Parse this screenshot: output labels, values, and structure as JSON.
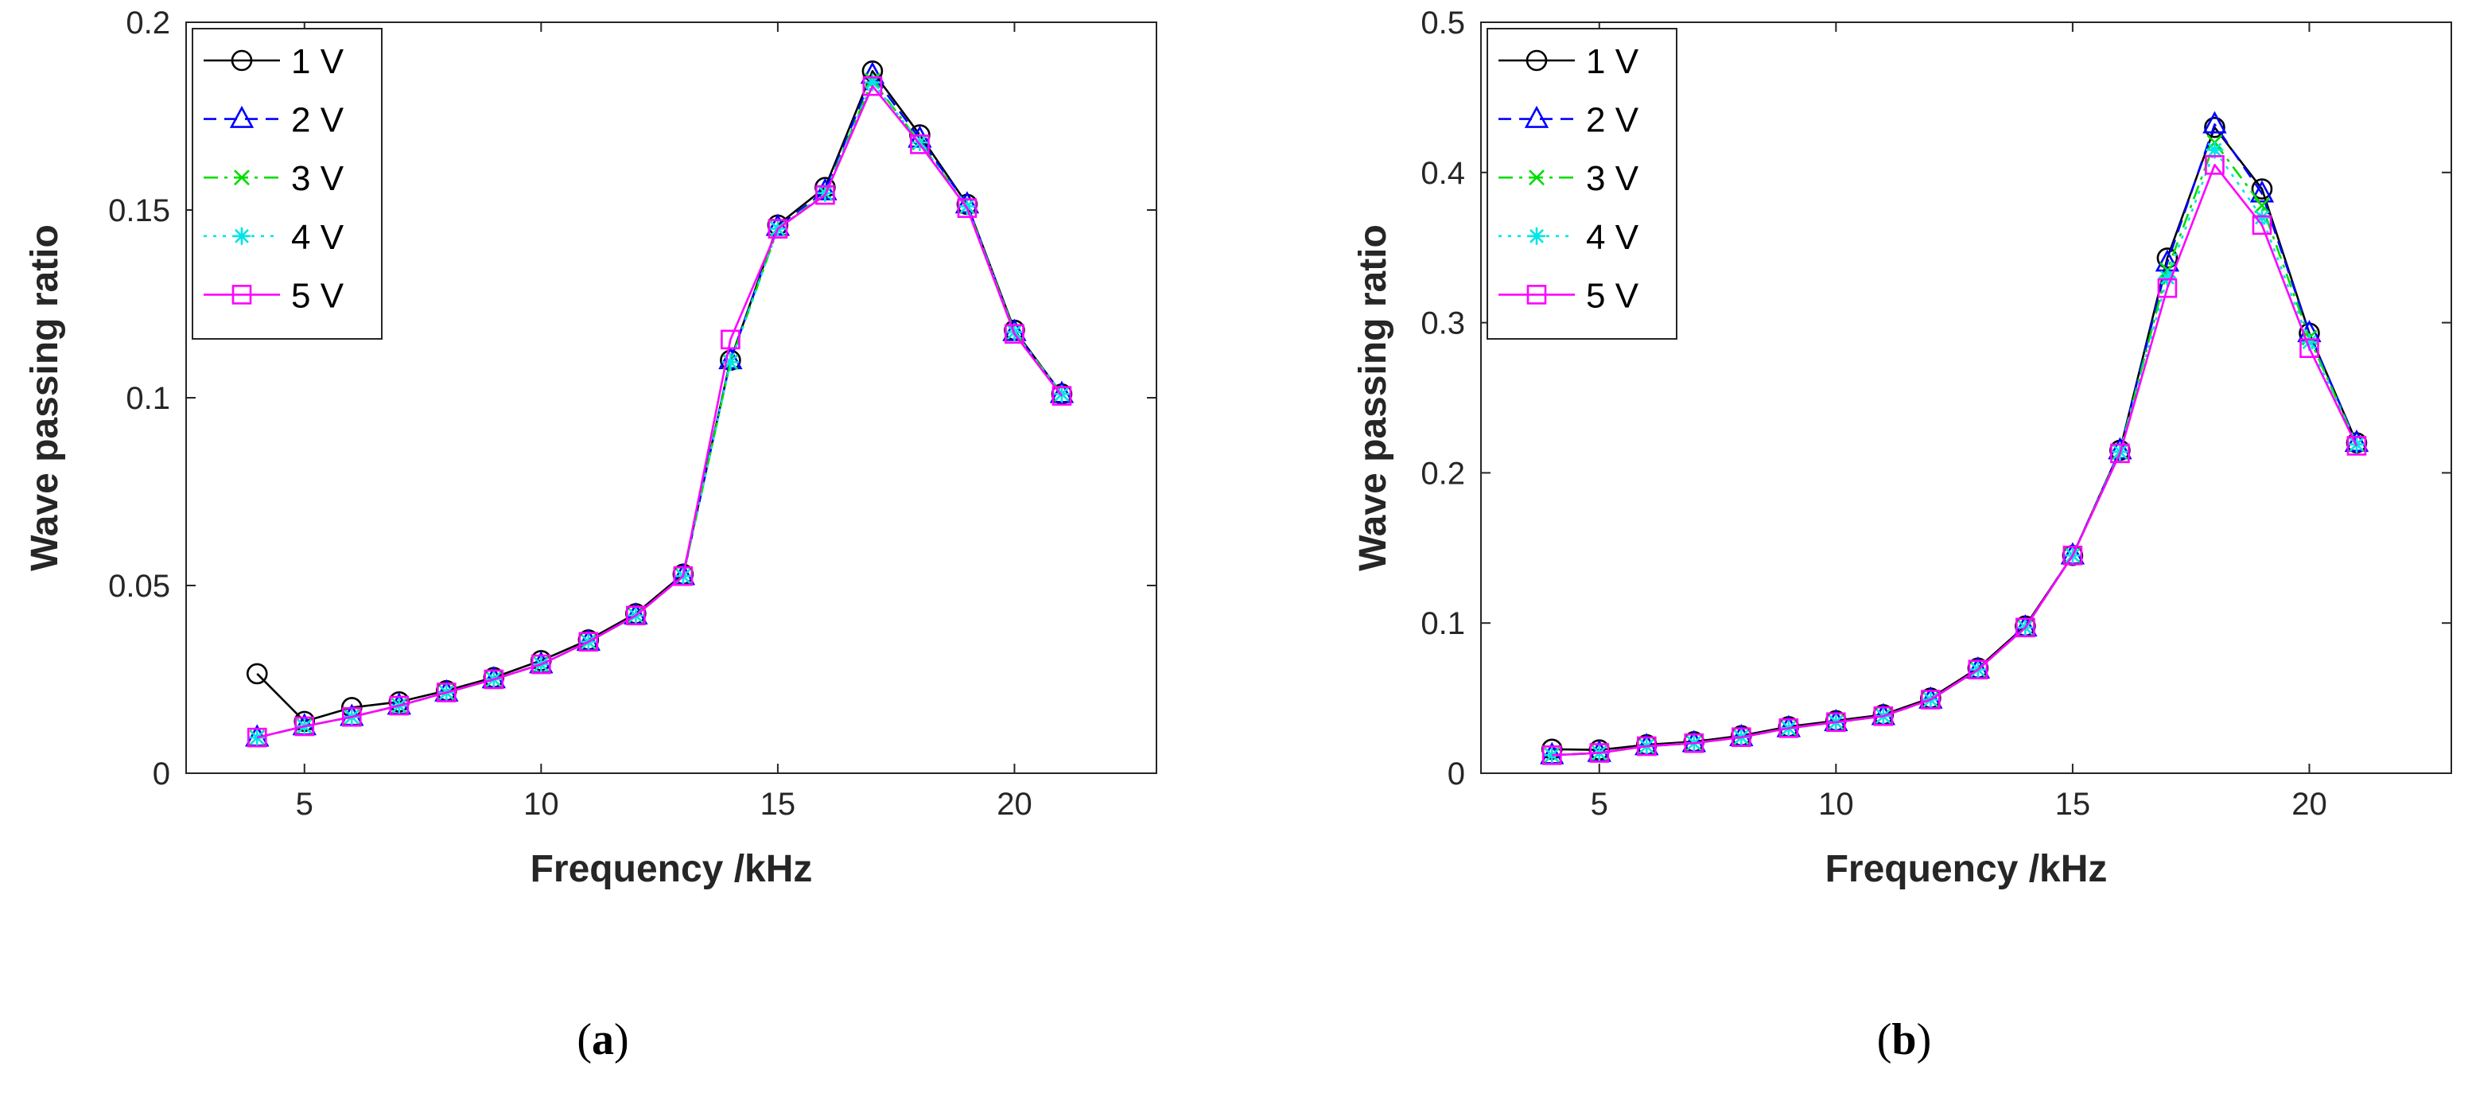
{
  "chart_data": [
    {
      "type": "line",
      "caption_open": "(",
      "caption_letter": "a",
      "caption_close": ")",
      "xlabel": "Frequency /kHz",
      "ylabel": "Wave passing ratio",
      "xlim": [
        2.5,
        23
      ],
      "ylim": [
        0,
        0.2
      ],
      "xticks": [
        5,
        10,
        15,
        20
      ],
      "yticks": [
        0,
        0.05,
        0.1,
        0.15,
        0.2
      ],
      "ytick_labels": [
        "0",
        "0.05",
        "0.1",
        "0.15",
        "0.2"
      ],
      "legend_position": "top-left",
      "x": [
        4,
        5,
        6,
        7,
        8,
        9,
        10,
        11,
        12,
        13,
        14,
        15,
        16,
        17,
        18,
        19,
        20,
        21
      ],
      "series": [
        {
          "name": "1 V",
          "color": "#000000",
          "marker": "circle",
          "dash": "solid",
          "values": [
            0.0265,
            0.0138,
            0.0175,
            0.019,
            0.022,
            0.0255,
            0.03,
            0.0355,
            0.0425,
            0.053,
            0.11,
            0.146,
            0.156,
            0.187,
            0.17,
            0.1515,
            0.118,
            0.101
          ]
        },
        {
          "name": "2 V",
          "color": "#0000ff",
          "marker": "triangle",
          "dash": "dashed",
          "values": [
            0.0095,
            0.0125,
            0.015,
            0.018,
            0.0215,
            0.025,
            0.029,
            0.035,
            0.042,
            0.0525,
            0.11,
            0.1455,
            0.155,
            0.186,
            0.169,
            0.1515,
            0.1175,
            0.101
          ]
        },
        {
          "name": "3 V",
          "color": "#00dd00",
          "marker": "cross",
          "dash": "dashdot",
          "values": [
            0.0095,
            0.0125,
            0.015,
            0.018,
            0.0215,
            0.025,
            0.029,
            0.035,
            0.042,
            0.0525,
            0.1095,
            0.145,
            0.1545,
            0.1845,
            0.168,
            0.151,
            0.1175,
            0.101
          ]
        },
        {
          "name": "4 V",
          "color": "#00e5e5",
          "marker": "star",
          "dash": "dotted",
          "values": [
            0.0095,
            0.0125,
            0.015,
            0.018,
            0.0215,
            0.025,
            0.029,
            0.035,
            0.042,
            0.0525,
            0.1095,
            0.145,
            0.1545,
            0.184,
            0.168,
            0.151,
            0.1175,
            0.101
          ]
        },
        {
          "name": "5 V",
          "color": "#ff00ff",
          "marker": "square",
          "dash": "solid",
          "values": [
            0.0095,
            0.0125,
            0.015,
            0.018,
            0.0215,
            0.025,
            0.029,
            0.035,
            0.042,
            0.0525,
            0.1155,
            0.145,
            0.154,
            0.183,
            0.1675,
            0.1505,
            0.117,
            0.1005
          ]
        }
      ]
    },
    {
      "type": "line",
      "caption_open": "(",
      "caption_letter": "b",
      "caption_close": ")",
      "xlabel": "Frequency /kHz",
      "ylabel": "Wave passing ratio",
      "xlim": [
        2.5,
        23
      ],
      "ylim": [
        0,
        0.5
      ],
      "xticks": [
        5,
        10,
        15,
        20
      ],
      "yticks": [
        0,
        0.1,
        0.2,
        0.3,
        0.4,
        0.5
      ],
      "ytick_labels": [
        "0",
        "0.1",
        "0.2",
        "0.3",
        "0.4",
        "0.5"
      ],
      "legend_position": "top-left",
      "x": [
        4,
        5,
        6,
        7,
        8,
        9,
        10,
        11,
        12,
        13,
        14,
        15,
        16,
        17,
        18,
        19,
        20,
        21
      ],
      "series": [
        {
          "name": "1 V",
          "color": "#000000",
          "marker": "circle",
          "dash": "solid",
          "values": [
            0.016,
            0.0155,
            0.019,
            0.021,
            0.025,
            0.031,
            0.035,
            0.039,
            0.05,
            0.07,
            0.098,
            0.145,
            0.215,
            0.343,
            0.43,
            0.389,
            0.293,
            0.22
          ]
        },
        {
          "name": "2 V",
          "color": "#0000ff",
          "marker": "triangle",
          "dash": "dashed",
          "values": [
            0.012,
            0.0135,
            0.018,
            0.02,
            0.024,
            0.03,
            0.034,
            0.038,
            0.049,
            0.069,
            0.097,
            0.145,
            0.215,
            0.34,
            0.432,
            0.386,
            0.293,
            0.22
          ]
        },
        {
          "name": "3 V",
          "color": "#00dd00",
          "marker": "cross",
          "dash": "dashdot",
          "values": [
            0.012,
            0.0135,
            0.018,
            0.02,
            0.024,
            0.03,
            0.034,
            0.038,
            0.049,
            0.069,
            0.097,
            0.145,
            0.214,
            0.335,
            0.42,
            0.378,
            0.29,
            0.219
          ]
        },
        {
          "name": "4 V",
          "color": "#00e5e5",
          "marker": "star",
          "dash": "dotted",
          "values": [
            0.012,
            0.0135,
            0.018,
            0.02,
            0.024,
            0.03,
            0.034,
            0.038,
            0.049,
            0.069,
            0.097,
            0.145,
            0.214,
            0.33,
            0.415,
            0.37,
            0.287,
            0.219
          ]
        },
        {
          "name": "5 V",
          "color": "#ff00ff",
          "marker": "square",
          "dash": "solid",
          "values": [
            0.012,
            0.0135,
            0.018,
            0.02,
            0.024,
            0.03,
            0.034,
            0.038,
            0.049,
            0.069,
            0.097,
            0.145,
            0.213,
            0.323,
            0.405,
            0.365,
            0.283,
            0.218
          ]
        }
      ]
    }
  ]
}
